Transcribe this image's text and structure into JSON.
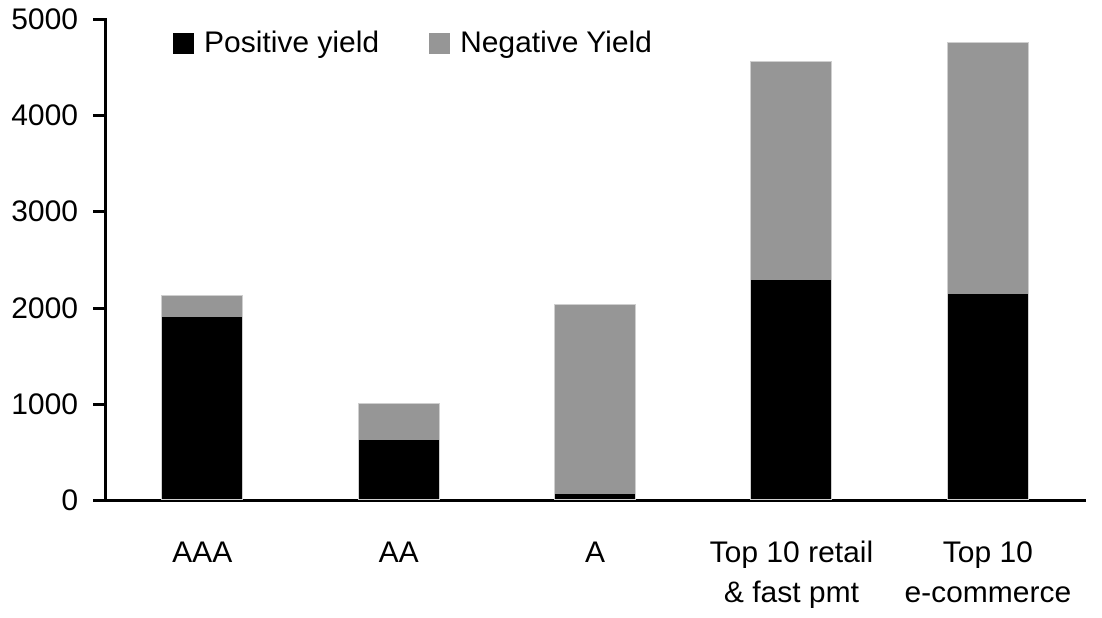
{
  "chart_data": {
    "type": "bar",
    "subtype": "stacked",
    "title": "",
    "xlabel": "",
    "ylabel": "",
    "categories": [
      "AAA",
      "AA",
      "A",
      "Top 10 retail\n& fast pmt",
      "Top 10\ne-commerce"
    ],
    "series": [
      {
        "name": "Positive yield",
        "color": "#000000",
        "values": [
          1890,
          610,
          50,
          2280,
          2130
        ]
      },
      {
        "name": "Negative Yield",
        "color": "#969696",
        "values": [
          215,
          375,
          1970,
          2260,
          2610
        ]
      }
    ],
    "totals": [
      2105,
      985,
      2020,
      4540,
      4740
    ],
    "ylim": [
      0,
      5000
    ],
    "yticks": [
      "0",
      "1000",
      "2000",
      "3000",
      "4000",
      "5000"
    ],
    "grid": false,
    "legend_position": "top",
    "axis_color": "#000000",
    "background_color": "#ffffff"
  }
}
